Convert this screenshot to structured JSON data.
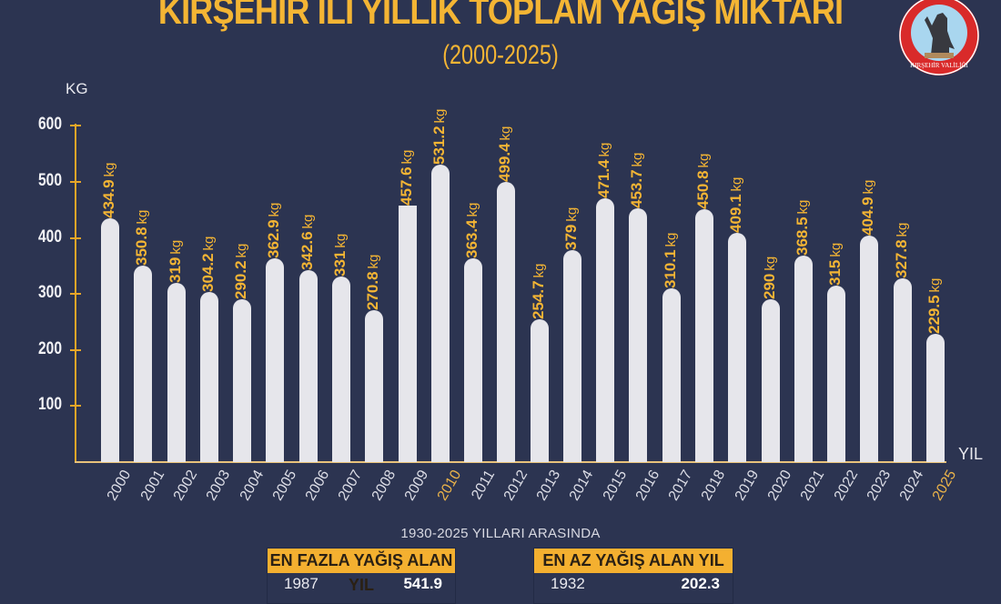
{
  "header": {
    "title": "KIRŞEHİR İLİ YILLIK TOPLAM YAĞIŞ MİKTARI",
    "subtitle": "(2000-2025)",
    "logo_text": "KIRŞEHİR VALİLİĞİ"
  },
  "chart_data": {
    "type": "bar",
    "title": "KIRŞEHİR İLİ YILLIK TOPLAM YAĞIŞ MİKTARI",
    "subtitle": "(2000-2025)",
    "xlabel": "YIL",
    "ylabel": "KG",
    "ylim": [
      0,
      600
    ],
    "yticks": [
      100,
      200,
      300,
      400,
      500,
      600
    ],
    "grid": false,
    "legend": null,
    "unit_suffix": "kg",
    "categories": [
      "2000",
      "2001",
      "2002",
      "2003",
      "2004",
      "2005",
      "2006",
      "2007",
      "2008",
      "2009",
      "2010",
      "2011",
      "2012",
      "2013",
      "2014",
      "2015",
      "2016",
      "2017",
      "2018",
      "2019",
      "2020",
      "2021",
      "2022",
      "2023",
      "2024",
      "2025"
    ],
    "values": [
      434.9,
      350.8,
      319,
      304.2,
      290.2,
      362.9,
      342.6,
      331,
      270.8,
      457.6,
      531.2,
      363.4,
      499.4,
      254.7,
      379,
      471.4,
      453.7,
      310.1,
      450.8,
      409.1,
      290,
      368.5,
      315,
      404.9,
      327.8,
      229.5
    ],
    "value_labels": [
      "434.9",
      "350.8",
      "319",
      "304.2",
      "290.2",
      "362.9",
      "342.6",
      "331",
      "270.8",
      "457.6",
      "531.2",
      "363.4",
      "499.4",
      "254.7",
      "379",
      "471.4",
      "453.7",
      "310.1",
      "450.8",
      "409.1",
      "290",
      "368.5",
      "315",
      "404.9",
      "327.8",
      "229.5"
    ],
    "highlighted_years": [
      "2010",
      "2025"
    ]
  },
  "records": {
    "range_title": "1930-2025 YILLARI ARASINDA",
    "max": {
      "label": "EN FAZLA YAĞIŞ ALAN YIL",
      "year": "1987",
      "value": "541.9"
    },
    "min": {
      "label": "EN AZ YAĞIŞ ALAN YIL",
      "year": "1932",
      "value": "202.3"
    }
  },
  "colors": {
    "background": "#2c3451",
    "accent": "#f4b534",
    "bar": "#e6e6eb",
    "axis": "#e8a628"
  }
}
